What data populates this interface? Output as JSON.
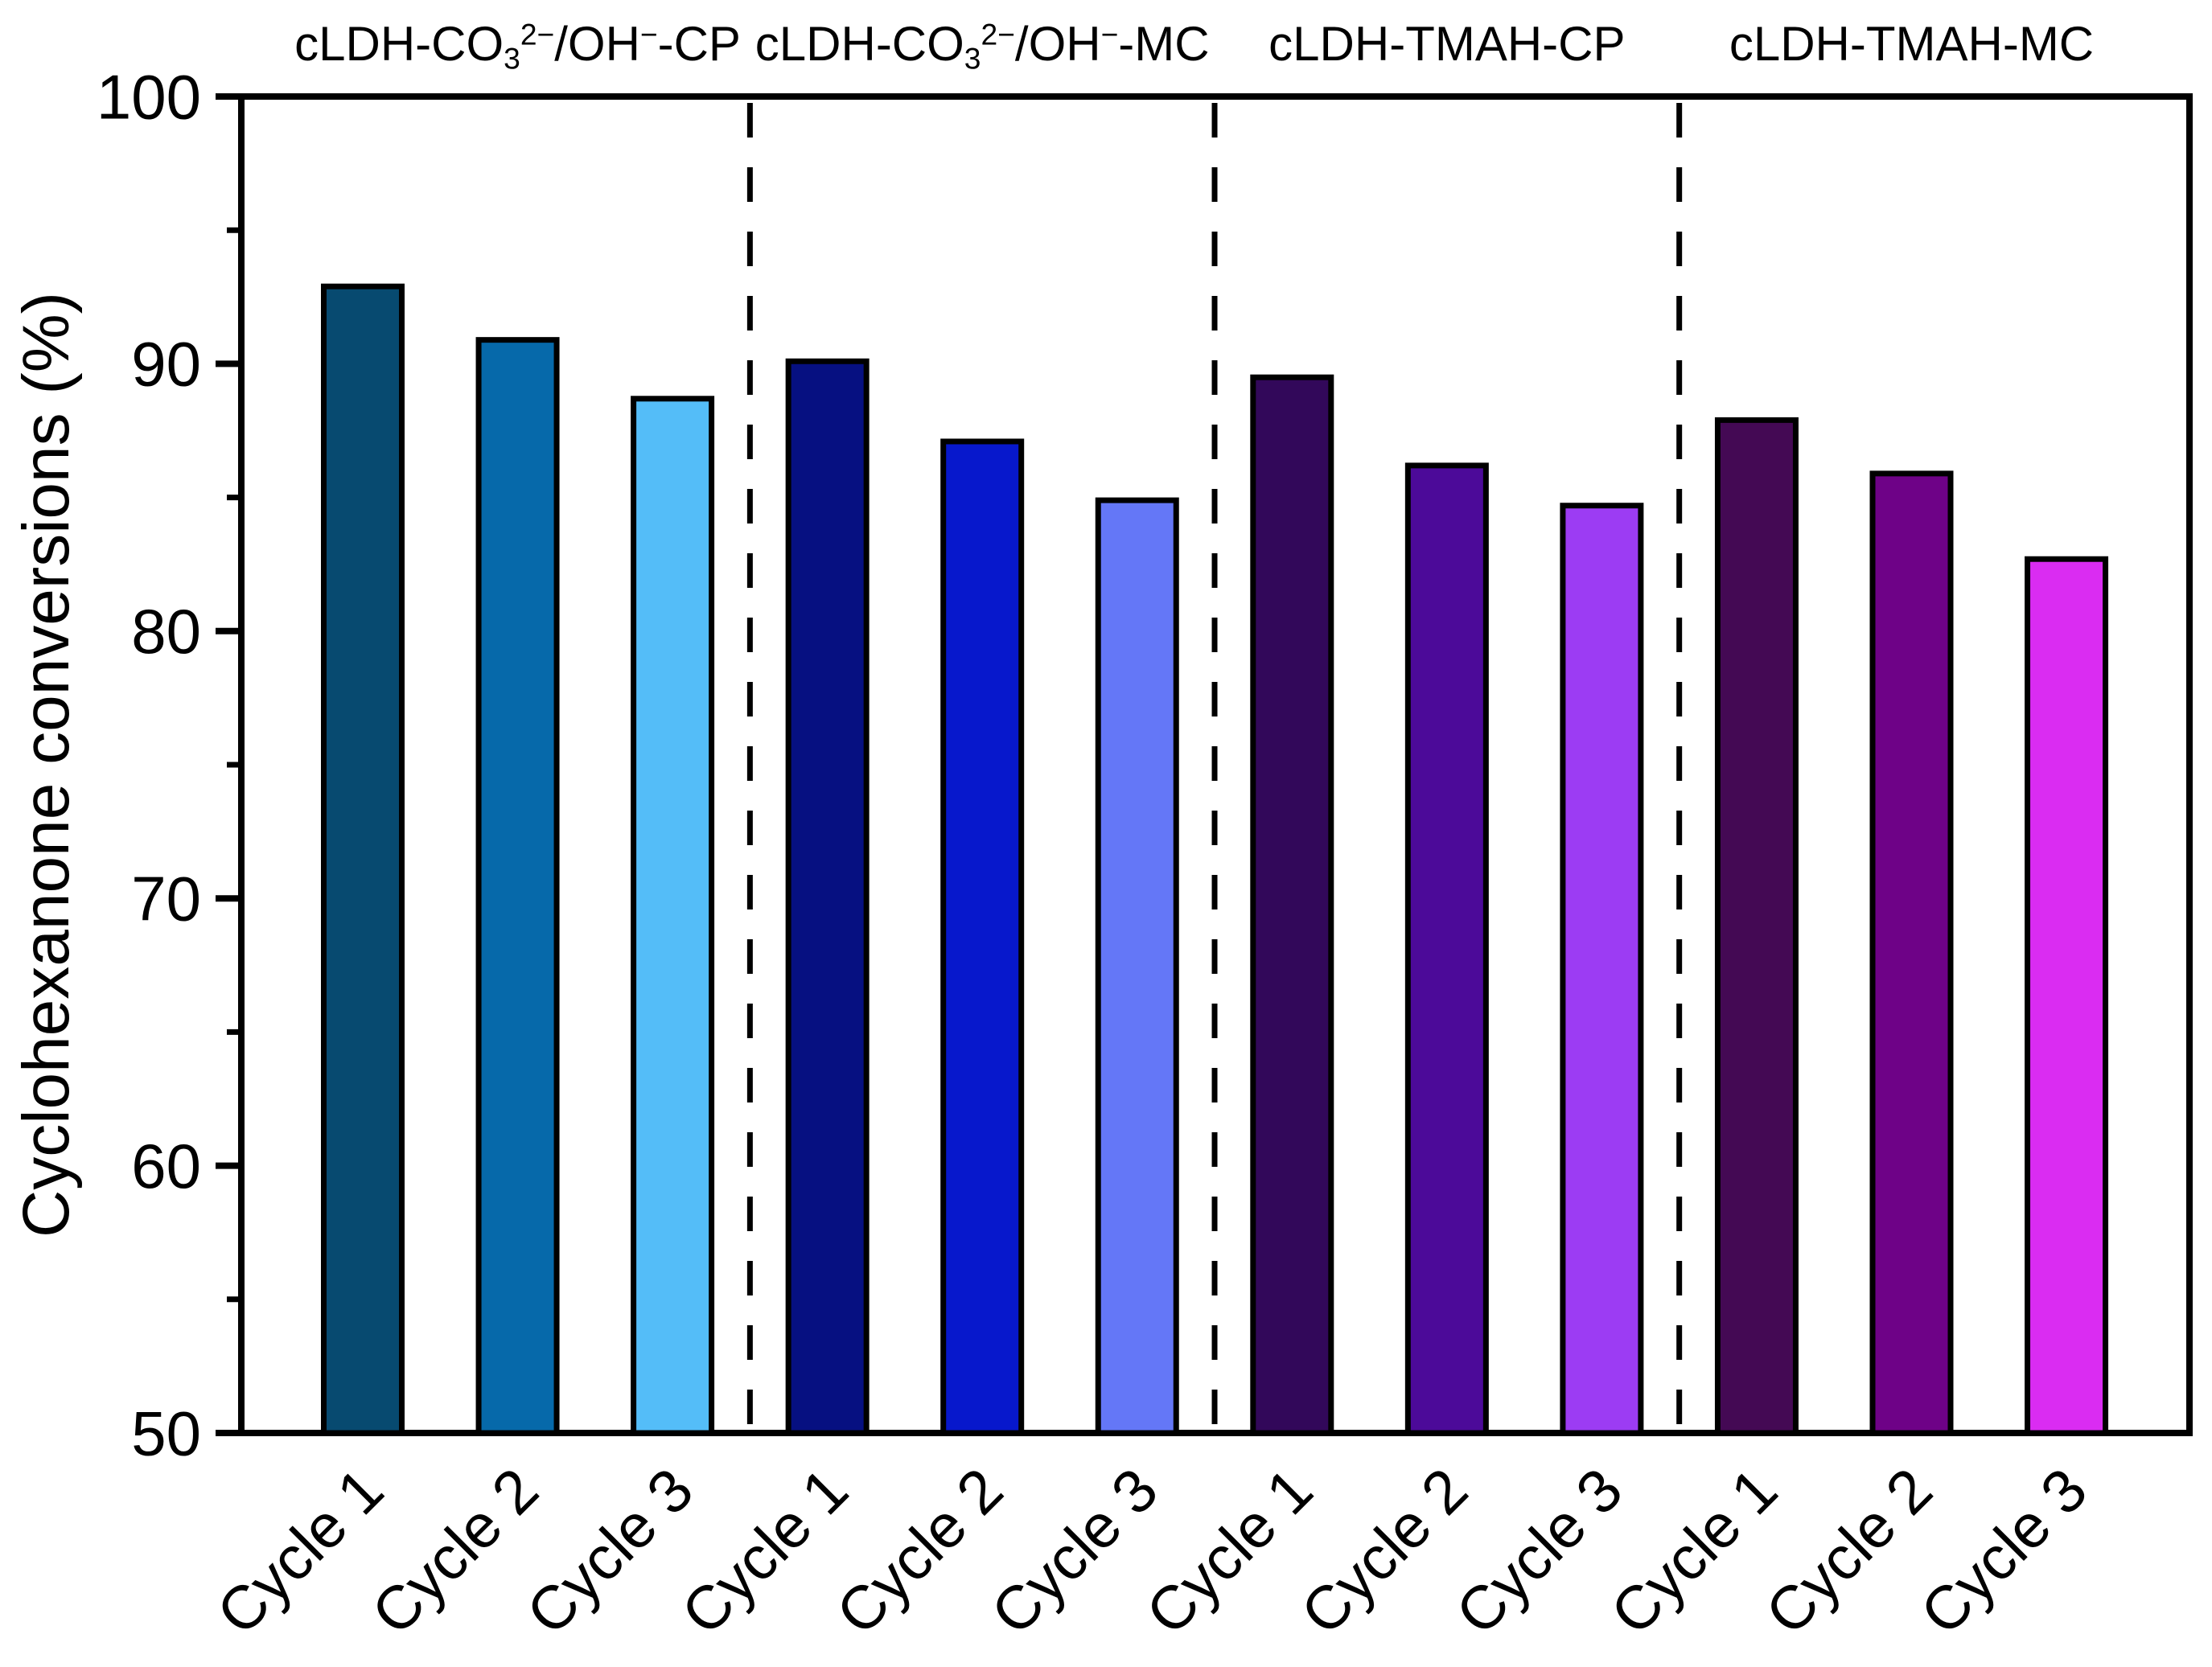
{
  "chart_data": {
    "type": "bar",
    "title": "",
    "xlabel": "",
    "ylabel": "Cyclohexanone conversions (%)",
    "ylim": [
      50,
      100
    ],
    "y_major_ticks": [
      50,
      60,
      70,
      80,
      90,
      100
    ],
    "y_minor_ticks": [
      55,
      65,
      75,
      85,
      95
    ],
    "grid": false,
    "legend_position": "none",
    "bar_outline_color": "#000000",
    "separator_style": "dashed-vertical-between-groups",
    "categories": [
      "Cycle 1",
      "Cycle 2",
      "Cycle 3",
      "Cycle 1",
      "Cycle 2",
      "Cycle 3",
      "Cycle 1",
      "Cycle 2",
      "Cycle 3",
      "Cycle 1",
      "Cycle 2",
      "Cycle 3"
    ],
    "groups": [
      {
        "label": "cLDH-CO₃²⁻/OH⁻-CP",
        "label_segments": [
          [
            "cLDH-CO"
          ],
          [
            "3",
            "sub"
          ],
          [
            "2−",
            "sup"
          ],
          [
            "/OH"
          ],
          [
            "−",
            "sup"
          ],
          [
            "-CP"
          ]
        ],
        "bars": [
          {
            "category": "Cycle 1",
            "value": 93.0,
            "color": "#074a70"
          },
          {
            "category": "Cycle 2",
            "value": 91.0,
            "color": "#0669aa"
          },
          {
            "category": "Cycle 3",
            "value": 88.8,
            "color": "#54bdf8"
          }
        ]
      },
      {
        "label": "cLDH-CO₃²⁻/OH⁻-MC",
        "label_segments": [
          [
            "cLDH-CO"
          ],
          [
            "3",
            "sub"
          ],
          [
            "2−",
            "sup"
          ],
          [
            "/OH"
          ],
          [
            "−",
            "sup"
          ],
          [
            "-MC"
          ]
        ],
        "bars": [
          {
            "category": "Cycle 1",
            "value": 90.2,
            "color": "#061081"
          },
          {
            "category": "Cycle 2",
            "value": 87.2,
            "color": "#0718cc"
          },
          {
            "category": "Cycle 3",
            "value": 85.0,
            "color": "#6477f7"
          }
        ]
      },
      {
        "label": "cLDH-TMAH-CP",
        "label_segments": [
          [
            "cLDH-TMAH-CP"
          ]
        ],
        "bars": [
          {
            "category": "Cycle 1",
            "value": 89.6,
            "color": "#32085a"
          },
          {
            "category": "Cycle 2",
            "value": 86.3,
            "color": "#4c0a99"
          },
          {
            "category": "Cycle 3",
            "value": 84.8,
            "color": "#9c3cf3"
          }
        ]
      },
      {
        "label": "cLDH-TMAH-MC",
        "label_segments": [
          [
            "cLDH-TMAH-MC"
          ]
        ],
        "bars": [
          {
            "category": "Cycle 1",
            "value": 88.0,
            "color": "#440954"
          },
          {
            "category": "Cycle 2",
            "value": 86.0,
            "color": "#6e0287"
          },
          {
            "category": "Cycle 3",
            "value": 82.8,
            "color": "#da2cf2"
          }
        ]
      }
    ]
  }
}
